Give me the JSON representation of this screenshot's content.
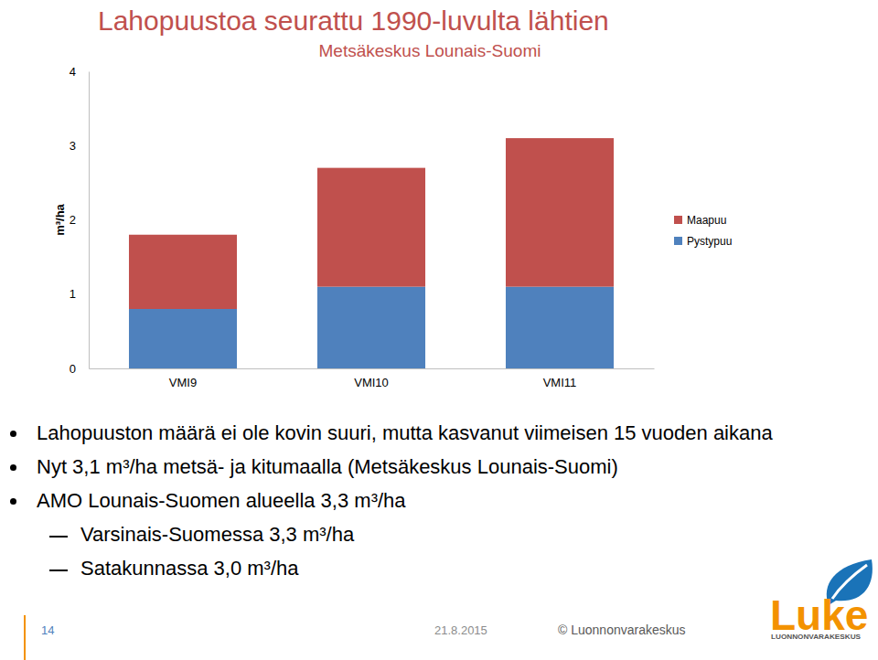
{
  "chart_data": {
    "type": "bar",
    "stacked": true,
    "title": "Lahopuustoa seurattu 1990-luvulta lähtien",
    "subtitle": "Metsäkeskus Lounais-Suomi",
    "y_label": "m³/ha",
    "categories": [
      "VMI9",
      "VMI10",
      "VMI11"
    ],
    "series": [
      {
        "name": "Pystypuu",
        "color": "#4F81BD",
        "values": [
          0.8,
          1.1,
          1.1
        ]
      },
      {
        "name": "Maapuu",
        "color": "#C0504D",
        "values": [
          1.0,
          1.6,
          2.0
        ]
      }
    ],
    "ylim": [
      0,
      4
    ],
    "yticks": [
      0,
      1,
      2,
      3,
      4
    ],
    "grid": false,
    "legend": "right"
  },
  "slide": {
    "bullets": [
      {
        "text": "Lahopuuston määrä ei ole kovin suuri, mutta kasvanut viimeisen 15 vuoden aikana"
      },
      {
        "text": "Nyt 3,1 m³/ha metsä- ja kitumaalla (Metsäkeskus Lounais-Suomi)"
      },
      {
        "text": "AMO Lounais-Suomen alueella 3,3 m³/ha",
        "items": [
          "Varsinais-Suomessa 3,3 m³/ha",
          "Satakunnassa 3,0 m³/ha"
        ]
      }
    ],
    "page_number": "14",
    "date": "21.8.2015",
    "copyright": "© Luonnonvarakeskus",
    "logo": {
      "name": "Luke",
      "subtitle": "LUONNONVARAKESKUS"
    }
  }
}
